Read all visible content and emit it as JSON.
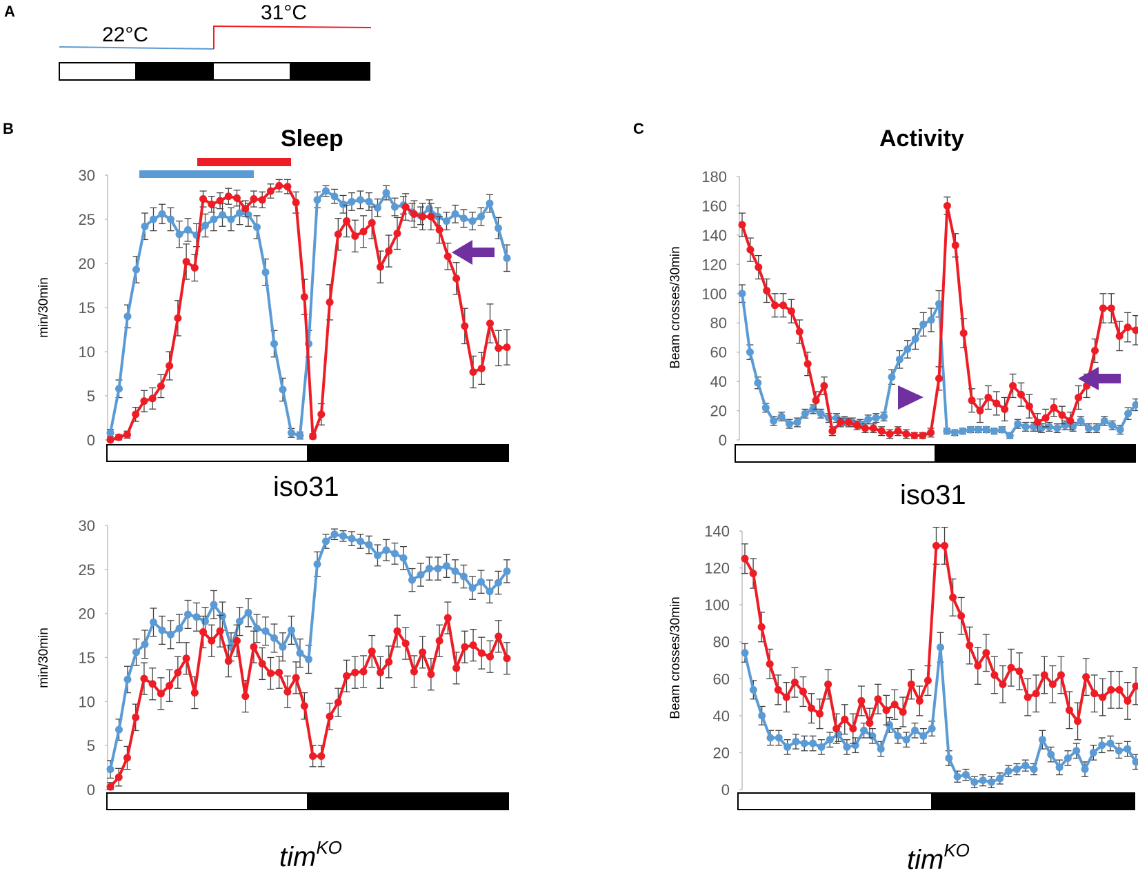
{
  "figure": {
    "panel_a": {
      "label": "A",
      "temp_low": "22°C",
      "temp_high": "31°C"
    },
    "panel_b": {
      "label": "B",
      "title": "Sleep"
    },
    "panel_c": {
      "label": "C",
      "title": "Activity"
    },
    "caption_top": "iso31",
    "caption_bottom_base": "tim",
    "caption_bottom_sup": "KO"
  },
  "colors": {
    "blue": "#5b9bd5",
    "red": "#ee1c25",
    "purple": "#7030a0",
    "axis": "#bfbfbf",
    "errbar": "#404040"
  },
  "chart_data": [
    {
      "id": "sleep-iso31",
      "type": "line",
      "ylabel": "min/30min",
      "ylim": [
        0,
        30
      ],
      "yticks": [
        0,
        5,
        10,
        15,
        20,
        25,
        30
      ],
      "series": [
        {
          "name": "22°C",
          "color": "blue",
          "values": [
            0.8,
            5.8,
            14,
            19.3,
            24.2,
            25,
            25.6,
            25,
            23.3,
            23.8,
            23.2,
            24.3,
            25,
            25.5,
            25,
            25.7,
            25.5,
            24.1,
            19,
            10.9,
            5.7,
            0.8,
            0.5,
            10.9,
            27.2,
            28.2,
            27.6,
            26.7,
            27,
            27.2,
            27,
            26.3,
            28,
            26.4,
            26.6,
            25.8,
            25.4,
            26.2,
            25.3,
            24.8,
            25.6,
            25.1,
            24.8,
            25.3,
            26.8,
            24,
            20.6
          ],
          "errors": [
            0.4,
            1,
            1.3,
            1.5,
            1.5,
            1.3,
            1.1,
            1.3,
            1.5,
            1.3,
            1.3,
            1.3,
            1.3,
            1.3,
            1.3,
            1.3,
            1.3,
            1.3,
            1.5,
            1.5,
            1.3,
            0.5,
            0.4,
            1.5,
            0.9,
            0.6,
            0.8,
            1,
            1,
            1,
            1,
            1,
            0.8,
            1,
            1,
            1,
            1,
            1,
            1,
            1,
            1,
            1,
            1,
            1,
            1,
            1.2,
            1.5
          ]
        },
        {
          "name": "31°C",
          "color": "red",
          "values": [
            0,
            0.3,
            0.6,
            2.9,
            4.4,
            4.7,
            6.1,
            8.4,
            13.8,
            20.2,
            19.5,
            27.3,
            26.7,
            27.1,
            27.6,
            27.4,
            26.2,
            27.3,
            27.2,
            28.2,
            28.8,
            28.7,
            26.9,
            16.2,
            0.4,
            2.9,
            15.6,
            23.3,
            24.8,
            23.1,
            23.6,
            24.6,
            19.6,
            21.4,
            23.4,
            26.4,
            25.6,
            25.3,
            25.3,
            23.8,
            20.8,
            18.3,
            12.9,
            7.7,
            8.1,
            13.2,
            10.4,
            10.5
          ],
          "errors": [
            0.2,
            0.3,
            0.4,
            0.8,
            1.2,
            1.2,
            1.3,
            1.6,
            2,
            2,
            1.5,
            0.9,
            0.9,
            0.9,
            0.9,
            0.9,
            0.9,
            0.9,
            0.9,
            0.8,
            0.7,
            0.8,
            1.2,
            2,
            0.3,
            1.2,
            2,
            1.8,
            1.8,
            1.8,
            1.8,
            1.8,
            1.8,
            1.8,
            1.8,
            1.5,
            1.5,
            1.5,
            1.5,
            1.5,
            1.5,
            1.8,
            2,
            1.8,
            1.8,
            2.2,
            2,
            2
          ]
        }
      ]
    },
    {
      "id": "sleep-timko",
      "type": "line",
      "ylabel": "min/30min",
      "ylim": [
        0,
        30
      ],
      "yticks": [
        0,
        5,
        10,
        15,
        20,
        25,
        30
      ],
      "series": [
        {
          "name": "22°C",
          "color": "blue",
          "values": [
            2.3,
            6.8,
            12.5,
            15.6,
            16.5,
            19,
            18.1,
            17.6,
            18.3,
            19.9,
            19.6,
            19.1,
            21,
            19.7,
            16.2,
            19.1,
            20.1,
            18.3,
            18,
            17.2,
            16.2,
            18.1,
            15.5,
            14.8,
            25.6,
            28.2,
            29,
            28.8,
            28.5,
            28.2,
            27.8,
            26.6,
            27.2,
            26.8,
            26.3,
            23.8,
            24.4,
            25.1,
            25.1,
            25.4,
            24.8,
            24.2,
            22.9,
            23.6,
            22.5,
            23.5,
            24.8
          ],
          "errors": [
            1,
            1.2,
            1.5,
            1.5,
            1.6,
            1.6,
            1.6,
            1.6,
            1.6,
            1.6,
            1.6,
            1.6,
            1.6,
            1.6,
            1.6,
            1.6,
            1.6,
            1.6,
            1.6,
            1.6,
            1.6,
            1.6,
            1.6,
            1.6,
            1.4,
            0.8,
            0.6,
            0.6,
            0.8,
            0.8,
            1,
            1.2,
            1.2,
            1.2,
            1.3,
            1.3,
            1.3,
            1.3,
            1.3,
            1.3,
            1.3,
            1.3,
            1.3,
            1.3,
            1.3,
            1.3,
            1.3
          ]
        },
        {
          "name": "31°C",
          "color": "red",
          "values": [
            0.3,
            1.4,
            3.6,
            8.2,
            12.6,
            12,
            10.9,
            11.8,
            13.3,
            14.9,
            11,
            17.9,
            16.9,
            18,
            14.6,
            16.9,
            10.6,
            16.2,
            14.3,
            13.2,
            13.3,
            11.1,
            12.7,
            9.5,
            3.8,
            3.8,
            8.3,
            9.9,
            12.9,
            13.3,
            13.4,
            15.7,
            13.3,
            14.5,
            18,
            16.6,
            13.4,
            15.6,
            13.1,
            16.9,
            19.5,
            13.8,
            16.2,
            16.4,
            15.5,
            15.1,
            17.4,
            14.9
          ],
          "errors": [
            0.5,
            1,
            1.3,
            1.5,
            1.8,
            1.8,
            1.8,
            1.8,
            1.8,
            1.8,
            1.8,
            1.8,
            1.8,
            1.8,
            1.8,
            1.8,
            1.8,
            1.8,
            1.8,
            1.8,
            1.8,
            1.8,
            1.8,
            1.5,
            1.2,
            1.2,
            1.5,
            1.6,
            1.8,
            1.8,
            1.8,
            1.8,
            1.8,
            1.8,
            1.8,
            1.8,
            1.8,
            1.8,
            1.8,
            1.8,
            1.8,
            1.8,
            1.8,
            1.8,
            1.8,
            1.8,
            1.8,
            1.8
          ]
        }
      ]
    },
    {
      "id": "activity-iso31",
      "type": "line",
      "ylabel": "Beam crosses/30min",
      "ylim": [
        0,
        180
      ],
      "yticks": [
        0,
        20,
        40,
        60,
        80,
        100,
        120,
        140,
        160,
        180
      ],
      "series": [
        {
          "name": "22°C",
          "color": "blue",
          "values": [
            100,
            60,
            39,
            22,
            13,
            16,
            11,
            12,
            18,
            21,
            18,
            15,
            15,
            13,
            12,
            11,
            14,
            15,
            16,
            43,
            55,
            62,
            69,
            79,
            82,
            93,
            6,
            5,
            6,
            7,
            7,
            7,
            6,
            7,
            3,
            11,
            9,
            9,
            8,
            9,
            8,
            10,
            9,
            13,
            8,
            8,
            13,
            10,
            7,
            18,
            24
          ],
          "errors": [
            6,
            5,
            4,
            3,
            3,
            3,
            3,
            3,
            3,
            3,
            3,
            3,
            3,
            3,
            3,
            3,
            3,
            3,
            3,
            5,
            6,
            6,
            7,
            8,
            8,
            9,
            2,
            2,
            2,
            2,
            2,
            2,
            2,
            2,
            2,
            3,
            3,
            3,
            3,
            3,
            3,
            3,
            3,
            3,
            3,
            3,
            3,
            3,
            3,
            4,
            4
          ]
        },
        {
          "name": "31°C",
          "color": "red",
          "values": [
            147,
            130,
            118,
            102,
            92,
            92,
            88,
            74,
            52,
            27,
            37,
            6,
            12,
            12,
            10,
            8,
            8,
            6,
            4,
            6,
            4,
            3,
            3,
            5,
            42,
            160,
            133,
            73,
            27,
            20,
            29,
            25,
            21,
            37,
            31,
            23,
            12,
            15,
            22,
            17,
            13,
            29,
            37,
            61,
            90,
            90,
            71,
            77,
            75
          ],
          "errors": [
            8,
            8,
            8,
            8,
            8,
            8,
            8,
            8,
            8,
            6,
            6,
            3,
            3,
            3,
            3,
            3,
            3,
            3,
            3,
            3,
            3,
            2,
            2,
            3,
            8,
            6,
            8,
            10,
            8,
            8,
            8,
            8,
            8,
            8,
            8,
            8,
            6,
            6,
            6,
            6,
            6,
            8,
            8,
            8,
            10,
            10,
            10,
            10,
            10
          ]
        }
      ]
    },
    {
      "id": "activity-timko",
      "type": "line",
      "ylabel": "Beam crosses/30min",
      "ylim": [
        0,
        140
      ],
      "yticks": [
        0,
        20,
        40,
        60,
        80,
        100,
        120,
        140
      ],
      "series": [
        {
          "name": "22°C",
          "color": "blue",
          "values": [
            74,
            54,
            40,
            28,
            28,
            23,
            26,
            25,
            25,
            23,
            27,
            30,
            23,
            24,
            32,
            29,
            22,
            35,
            29,
            27,
            32,
            29,
            33,
            77,
            17,
            7,
            8,
            4,
            5,
            4,
            6,
            10,
            11,
            13,
            11,
            27,
            19,
            12,
            17,
            21,
            11,
            20,
            24,
            25,
            21,
            22,
            15
          ],
          "errors": [
            5,
            5,
            5,
            4,
            4,
            4,
            4,
            4,
            4,
            4,
            4,
            4,
            4,
            4,
            4,
            4,
            4,
            4,
            4,
            4,
            4,
            4,
            4,
            8,
            4,
            3,
            3,
            3,
            3,
            3,
            3,
            3,
            3,
            3,
            3,
            5,
            4,
            4,
            4,
            4,
            4,
            4,
            4,
            4,
            4,
            4,
            4
          ]
        },
        {
          "name": "31°C",
          "color": "red",
          "values": [
            125,
            117,
            88,
            68,
            54,
            50,
            58,
            53,
            44,
            41,
            57,
            33,
            38,
            33,
            48,
            36,
            49,
            43,
            46,
            42,
            57,
            48,
            59,
            132,
            132,
            104,
            94,
            78,
            67,
            74,
            62,
            57,
            66,
            64,
            50,
            52,
            62,
            57,
            62,
            43,
            37,
            61,
            52,
            50,
            54,
            54,
            48,
            56
          ],
          "errors": [
            8,
            8,
            8,
            8,
            8,
            8,
            8,
            8,
            8,
            8,
            8,
            8,
            8,
            8,
            8,
            8,
            8,
            8,
            8,
            8,
            8,
            8,
            8,
            10,
            10,
            10,
            10,
            10,
            10,
            10,
            10,
            10,
            10,
            10,
            10,
            10,
            10,
            10,
            10,
            10,
            10,
            10,
            10,
            10,
            10,
            10,
            10,
            10
          ]
        }
      ]
    }
  ]
}
